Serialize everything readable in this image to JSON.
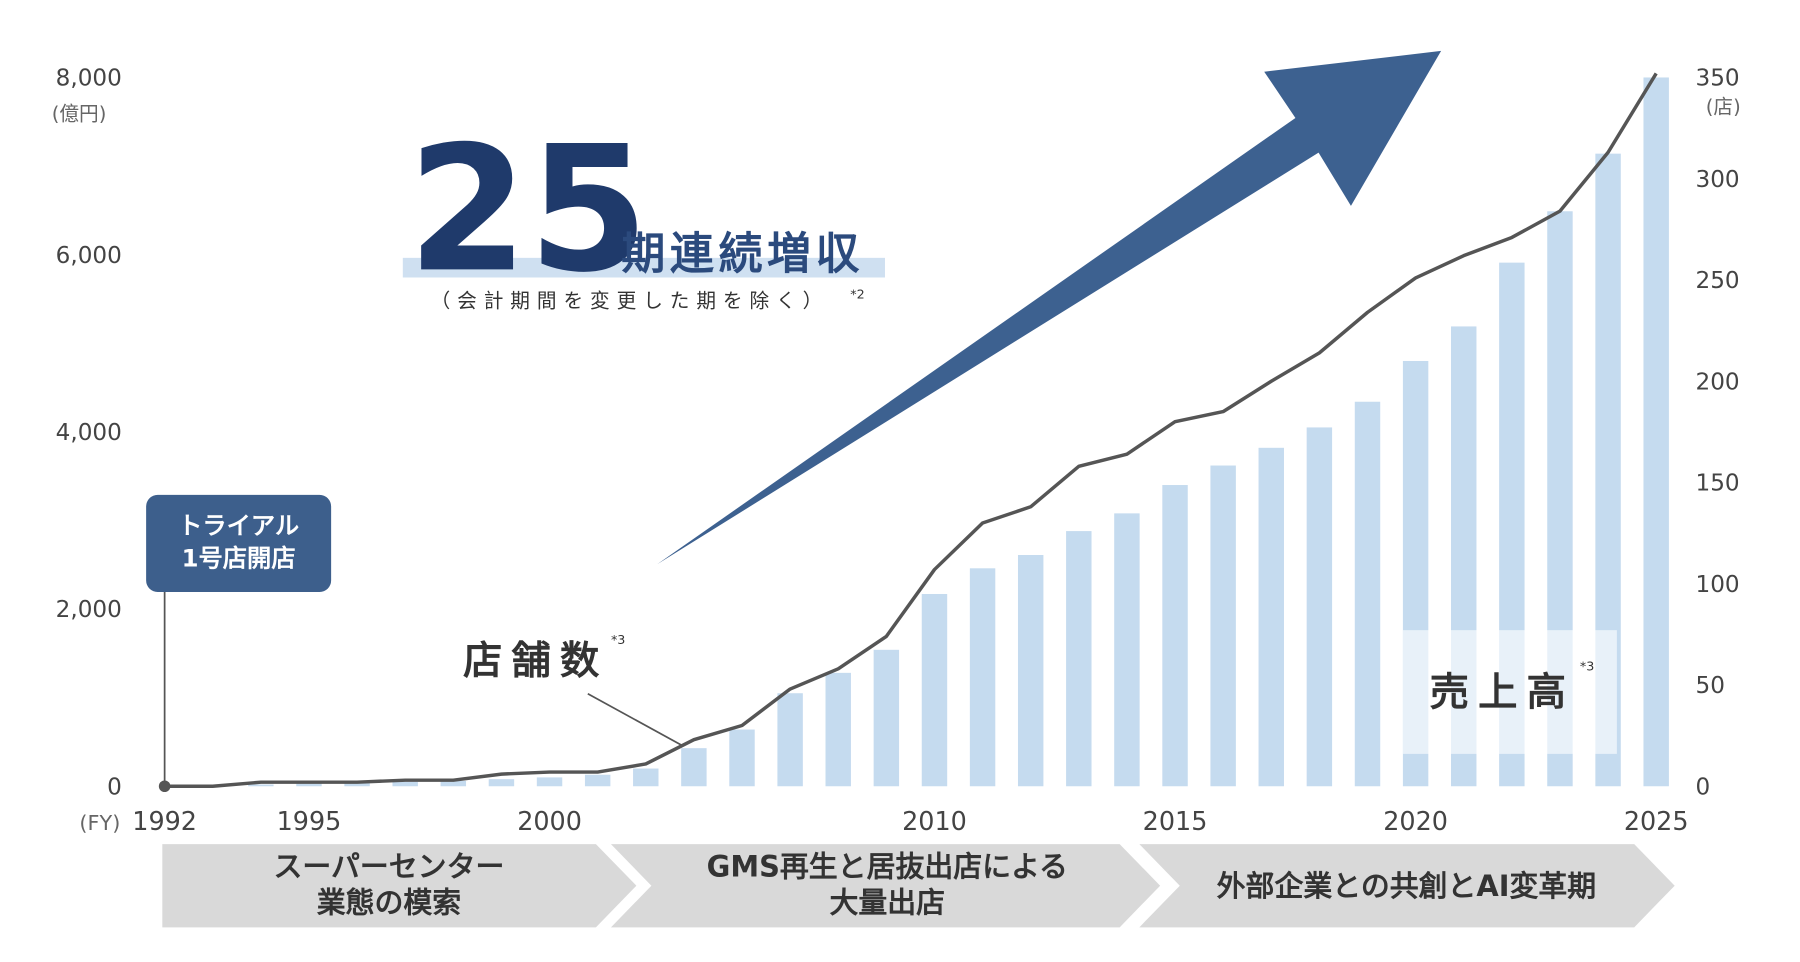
{
  "chart_data": {
    "type": "bar_line",
    "categories": [
      "1992",
      null,
      null,
      "1995",
      null,
      null,
      null,
      null,
      "2000",
      null,
      null,
      null,
      null,
      null,
      null,
      null,
      "2010",
      null,
      null,
      null,
      null,
      "2015",
      null,
      null,
      null,
      null,
      "2020",
      null,
      null,
      null,
      null,
      "2025"
    ],
    "x_unit": "(FY)",
    "series": [
      {
        "name": "売上高",
        "name_note": "*3",
        "color": "#c5dbef",
        "axis": "y",
        "values": [
          0,
          0,
          20,
          30,
          40,
          50,
          60,
          80,
          100,
          130,
          200,
          430,
          640,
          1050,
          1280,
          1540,
          2170,
          2460,
          2610,
          2880,
          3080,
          3400,
          3620,
          3820,
          4050,
          4340,
          4800,
          5190,
          5910,
          6490,
          7140,
          8000
        ]
      },
      {
        "name": "店舗数",
        "name_note": "*3",
        "color": "#555555",
        "axis": "y2",
        "values": [
          0,
          0,
          2,
          2,
          2,
          3,
          3,
          6,
          7,
          7,
          11,
          23,
          30,
          48,
          58,
          74,
          107,
          130,
          138,
          158,
          164,
          180,
          185,
          200,
          214,
          234,
          251,
          262,
          271,
          284,
          313,
          352
        ]
      }
    ],
    "ylim": [
      0,
      8000
    ],
    "yticks": [
      0,
      {
        "value": 2000,
        "label": "2,000"
      },
      {
        "value": 4000,
        "label": "4,000"
      },
      {
        "value": 6000,
        "label": "6,000"
      },
      {
        "value": 8000,
        "label": "8,000"
      }
    ],
    "y_unit": "(億円)",
    "y2lim": [
      0,
      350
    ],
    "y2ticks": [
      0,
      50,
      100,
      150,
      200,
      250,
      300,
      350
    ],
    "y2_unit": "(店)",
    "headline": {
      "number": "25",
      "text": "期連続増収",
      "note": "（会計期間を変更した期を除く）",
      "note_mark": "*2"
    },
    "event": {
      "lines": [
        "トライアル",
        "1号店開店"
      ]
    },
    "phases": [
      {
        "lines": [
          "スーパーセンター",
          "業態の模索"
        ]
      },
      {
        "lines": [
          "GMS再生と居抜出店による",
          "大量出店"
        ]
      },
      {
        "lines": [
          "外部企業との共創とAI変革期"
        ]
      }
    ]
  }
}
